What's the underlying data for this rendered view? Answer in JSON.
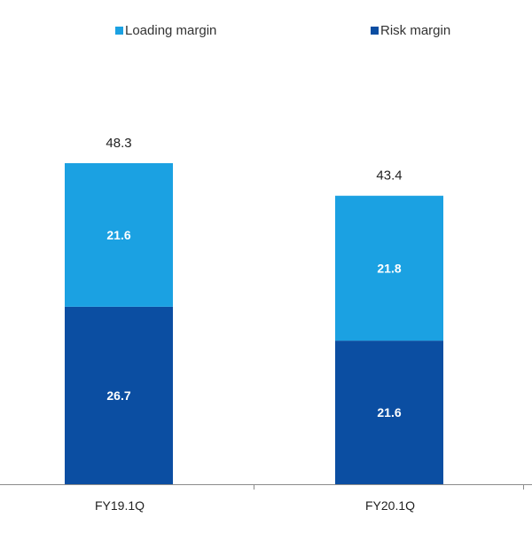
{
  "chart_data": {
    "type": "bar",
    "stacked": true,
    "categories": [
      "FY19.1Q",
      "FY20.1Q"
    ],
    "series": [
      {
        "name": "Risk margin",
        "values": [
          26.7,
          21.6
        ],
        "color": "#0B4EA2"
      },
      {
        "name": "Loading margin",
        "values": [
          21.6,
          21.8
        ],
        "color": "#1BA1E2"
      }
    ],
    "totals": [
      "48.3",
      "43.4"
    ],
    "value_labels": [
      [
        "26.7",
        "21.6"
      ],
      [
        "21.6",
        "21.8"
      ]
    ],
    "title": "",
    "xlabel": "",
    "ylabel": "",
    "ylim": [
      0,
      48.3
    ],
    "grid": false,
    "legend_position": "top",
    "legend_order": [
      "Loading margin",
      "Risk margin"
    ]
  }
}
